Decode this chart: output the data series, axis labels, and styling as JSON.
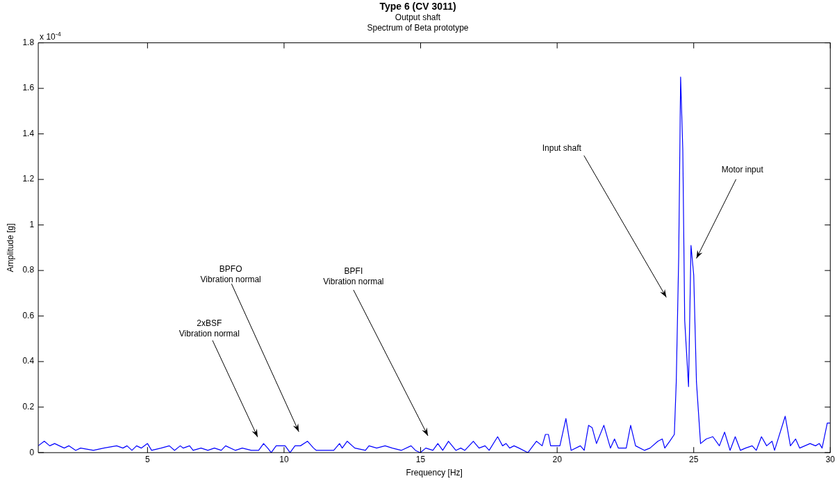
{
  "chart_data": {
    "type": "line",
    "title": "Type 6 (CV 3011)",
    "subtitle": "Output shaft\nSpectrum of Beta prototype",
    "xlabel": "Frequency [Hz]",
    "ylabel": "Amplitude [g]",
    "xlim": [
      1,
      30
    ],
    "xticks": [
      5,
      10,
      15,
      20,
      25,
      30
    ],
    "ylim": [
      0,
      1.8
    ],
    "yticks": [
      0,
      0.2,
      0.4,
      0.6,
      0.8,
      1,
      1.2,
      1.4,
      1.6,
      1.8
    ],
    "grid": false,
    "legend": false,
    "series": [
      {
        "color": "#0000ff",
        "x": [
          1.0,
          1.22,
          1.42,
          1.6,
          1.95,
          2.12,
          2.37,
          2.55,
          3.02,
          3.4,
          3.87,
          4.1,
          4.25,
          4.43,
          4.6,
          4.77,
          5.0,
          5.15,
          5.5,
          5.8,
          5.99,
          6.2,
          6.31,
          6.54,
          6.67,
          6.96,
          7.21,
          7.45,
          7.7,
          7.86,
          8.22,
          8.47,
          8.8,
          9.07,
          9.25,
          9.4,
          9.53,
          9.71,
          10.04,
          10.22,
          10.4,
          10.6,
          10.86,
          11.08,
          11.18,
          11.46,
          11.82,
          12.03,
          12.13,
          12.31,
          12.59,
          12.98,
          13.11,
          13.39,
          13.7,
          13.96,
          14.29,
          14.65,
          14.81,
          14.99,
          15.19,
          15.45,
          15.63,
          15.81,
          16.02,
          16.29,
          16.47,
          16.62,
          16.93,
          17.14,
          17.36,
          17.51,
          17.82,
          18.0,
          18.13,
          18.26,
          18.42,
          18.6,
          18.93,
          19.24,
          19.45,
          19.57,
          19.68,
          19.76,
          19.97,
          20.1,
          20.32,
          20.51,
          20.85,
          20.99,
          21.15,
          21.28,
          21.44,
          21.71,
          21.95,
          22.1,
          22.24,
          22.53,
          22.69,
          22.87,
          23.2,
          23.4,
          23.69,
          23.85,
          23.94,
          24.12,
          24.29,
          24.36,
          24.45,
          24.52,
          24.6,
          24.67,
          24.81,
          24.9,
          25.0,
          25.1,
          25.25,
          25.46,
          25.7,
          25.94,
          26.13,
          26.33,
          26.52,
          26.71,
          26.9,
          27.14,
          27.29,
          27.48,
          27.67,
          27.87,
          27.96,
          28.35,
          28.54,
          28.73,
          28.88,
          29.26,
          29.46,
          29.6,
          29.7,
          29.89,
          29.99
        ],
        "values": [
          0.03,
          0.05,
          0.03,
          0.04,
          0.02,
          0.03,
          0.01,
          0.02,
          0.01,
          0.02,
          0.03,
          0.02,
          0.03,
          0.01,
          0.03,
          0.02,
          0.04,
          0.01,
          0.02,
          0.03,
          0.01,
          0.03,
          0.02,
          0.03,
          0.01,
          0.02,
          0.01,
          0.02,
          0.01,
          0.03,
          0.01,
          0.02,
          0.01,
          0.01,
          0.04,
          0.02,
          0.0,
          0.03,
          0.03,
          0.0,
          0.03,
          0.03,
          0.05,
          0.02,
          0.01,
          0.01,
          0.01,
          0.04,
          0.02,
          0.05,
          0.02,
          0.01,
          0.03,
          0.02,
          0.03,
          0.02,
          0.01,
          0.03,
          0.01,
          0.0,
          0.02,
          0.01,
          0.04,
          0.01,
          0.05,
          0.01,
          0.02,
          0.01,
          0.05,
          0.02,
          0.03,
          0.01,
          0.07,
          0.03,
          0.04,
          0.02,
          0.03,
          0.02,
          0.0,
          0.05,
          0.03,
          0.08,
          0.08,
          0.03,
          0.03,
          0.03,
          0.15,
          0.01,
          0.03,
          0.01,
          0.12,
          0.11,
          0.04,
          0.12,
          0.02,
          0.06,
          0.02,
          0.02,
          0.12,
          0.03,
          0.01,
          0.02,
          0.05,
          0.06,
          0.02,
          0.05,
          0.08,
          0.31,
          0.86,
          1.65,
          1.33,
          0.58,
          0.29,
          0.91,
          0.78,
          0.31,
          0.04,
          0.06,
          0.07,
          0.03,
          0.09,
          0.01,
          0.07,
          0.01,
          0.02,
          0.03,
          0.01,
          0.07,
          0.03,
          0.05,
          0.01,
          0.16,
          0.03,
          0.06,
          0.02,
          0.04,
          0.03,
          0.04,
          0.02,
          0.13,
          0.13
        ]
      }
    ],
    "annotations": [
      "x 10$^{-4}$",
      "2xBSF\nVibration normal",
      "BPFO\nVibration normal",
      "BPFI\nVibration normal",
      "Input shaft",
      "Motor input"
    ]
  }
}
